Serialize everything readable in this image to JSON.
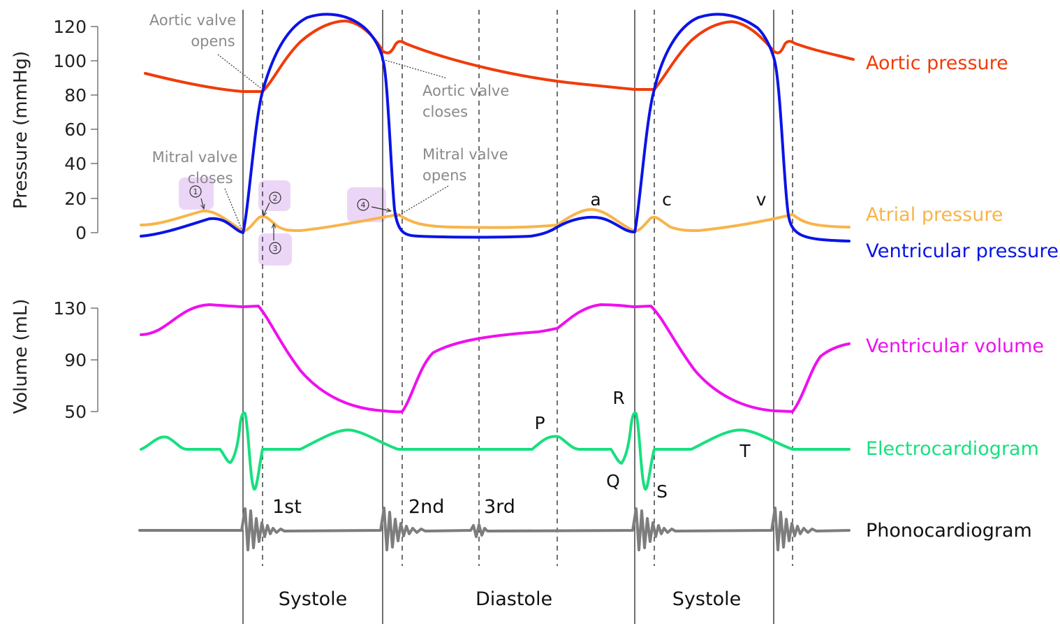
{
  "colors": {
    "aortic": "#f03c0a",
    "atrial": "#f8b44a",
    "ventricular_pressure": "#0a14e6",
    "ventricular_volume": "#ee10ee",
    "ecg": "#16e07e",
    "phono": "#7d7d7d",
    "highlight": "#e6c8f4",
    "note": "#8a8a8a"
  },
  "axes": {
    "pressure": {
      "label": "Pressure (mmHg)",
      "ticks": [
        "0",
        "20",
        "40",
        "60",
        "80",
        "100",
        "120"
      ]
    },
    "volume": {
      "label": "Volume (mL)",
      "ticks": [
        "50",
        "90",
        "130"
      ]
    }
  },
  "traces": {
    "aortic": "Aortic pressure",
    "atrial": "Atrial pressure",
    "ventricular_pressure": "Ventricular pressure",
    "ventricular_volume": "Ventricular volume",
    "ecg": "Electrocardiogram",
    "phono": "Phonocardiogram"
  },
  "annotations": {
    "aortic_opens": [
      "Aortic valve",
      "opens"
    ],
    "aortic_closes": [
      "Aortic valve",
      "closes"
    ],
    "mitral_closes": [
      "Mitral valve",
      "closes"
    ],
    "mitral_opens": [
      "Mitral valve",
      "opens"
    ]
  },
  "atrial_waves": {
    "a": "a",
    "c": "c",
    "v": "v"
  },
  "ecg_waves": {
    "P": "P",
    "Q": "Q",
    "R": "R",
    "S": "S",
    "T": "T"
  },
  "heart_sounds": {
    "first": "1st",
    "second": "2nd",
    "third": "3rd"
  },
  "phases": {
    "systole_1": "Systole",
    "diastole": "Diastole",
    "systole_2": "Systole"
  },
  "handwritten_marks": {
    "m1": "1",
    "m2": "2",
    "m3": "3",
    "m4": "4"
  }
}
